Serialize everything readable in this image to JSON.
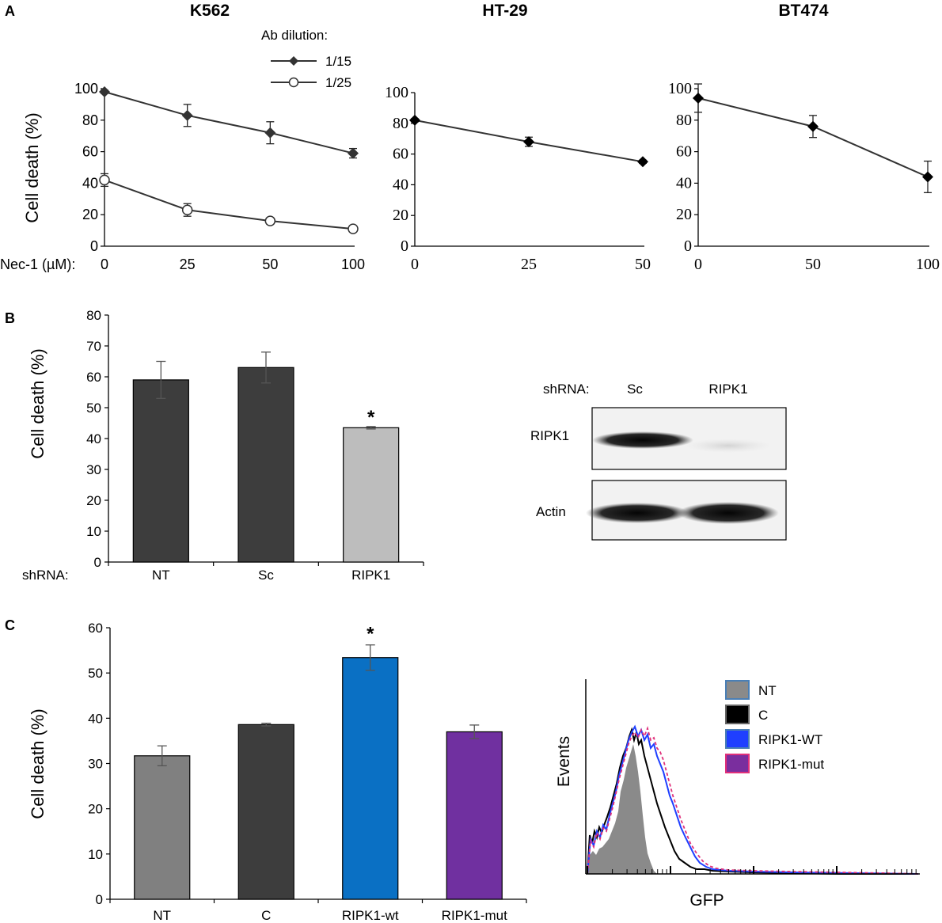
{
  "panel_labels": {
    "a": "A",
    "b": "B",
    "c": "C"
  },
  "chart_data": [
    {
      "id": "a1",
      "type": "line",
      "title": "K562",
      "ylabel": "Cell death (%)",
      "xaxis_prefix": "Nec-1 (µM):",
      "categories": [
        "0",
        "25",
        "50",
        "100"
      ],
      "ylim": [
        0,
        100
      ],
      "yticks": [
        0,
        20,
        40,
        60,
        80,
        100
      ],
      "legend_title": "Ab dilution:",
      "legend_position": "top-right",
      "series": [
        {
          "name": "1/15",
          "marker": "diamond",
          "values": [
            98,
            83,
            72,
            59
          ],
          "errors": [
            1,
            7,
            7,
            3
          ]
        },
        {
          "name": "1/25",
          "marker": "circle",
          "values": [
            42,
            23,
            16,
            11
          ],
          "errors": [
            4,
            4,
            2,
            1
          ]
        }
      ]
    },
    {
      "id": "a2",
      "type": "line",
      "title": "HT-29",
      "categories": [
        "0",
        "25",
        "50"
      ],
      "ylim": [
        0,
        100
      ],
      "yticks": [
        0,
        20,
        40,
        60,
        80,
        100
      ],
      "series": [
        {
          "name": "HT-29",
          "marker": "diamond",
          "values": [
            82,
            68,
            55
          ],
          "errors": [
            1,
            3,
            1
          ]
        }
      ]
    },
    {
      "id": "a3",
      "type": "line",
      "title": "BT474",
      "categories": [
        "0",
        "50",
        "100"
      ],
      "ylim": [
        0,
        100
      ],
      "yticks": [
        0,
        20,
        40,
        60,
        80,
        100
      ],
      "series": [
        {
          "name": "BT474",
          "marker": "diamond",
          "values": [
            94,
            76,
            44
          ],
          "errors": [
            9,
            7,
            10
          ]
        }
      ]
    },
    {
      "id": "b1",
      "type": "bar",
      "ylabel": "Cell death (%)",
      "xaxis_prefix": "shRNA:",
      "categories": [
        "NT",
        "Sc",
        "RIPK1"
      ],
      "values": [
        59,
        63,
        43.5
      ],
      "errors": [
        6,
        5,
        0.4
      ],
      "colors": [
        "#3d3d3d",
        "#3d3d3d",
        "#bdbdbd"
      ],
      "significance": [
        "",
        "",
        "*"
      ],
      "ylim": [
        0,
        80
      ],
      "yticks": [
        0,
        10,
        20,
        30,
        40,
        50,
        60,
        70,
        80
      ]
    },
    {
      "id": "c1",
      "type": "bar",
      "ylabel": "Cell death (%)",
      "categories": [
        "NT",
        "C",
        "RIPK1-wt",
        "RIPK1-mut"
      ],
      "values": [
        31.7,
        38.6,
        53.4,
        37
      ],
      "errors": [
        2.2,
        0.3,
        2.8,
        1.5
      ],
      "colors": [
        "#808080",
        "#3d3d3d",
        "#0a70c4",
        "#7030a0"
      ],
      "significance": [
        "",
        "",
        "*",
        ""
      ],
      "ylim": [
        0,
        60
      ],
      "yticks": [
        0,
        10,
        20,
        30,
        40,
        50,
        60
      ]
    }
  ],
  "western_blot": {
    "header_prefix": "shRNA:",
    "lanes": [
      "Sc",
      "RIPK1"
    ],
    "rows": [
      "RIPK1",
      "Actin"
    ]
  },
  "flow_histogram": {
    "xlabel": "GFP",
    "ylabel": "Events",
    "legend": [
      {
        "name": "NT",
        "color": "#8a8a8a",
        "border": "#4a7fb5"
      },
      {
        "name": "C",
        "color": "#000000",
        "border": "#666666"
      },
      {
        "name": "RIPK1-WT",
        "color": "#1f3fff",
        "border": "#4a7fb5"
      },
      {
        "name": "RIPK1-mut",
        "color": "#7a2e9e",
        "border": "#e0307a"
      }
    ]
  }
}
